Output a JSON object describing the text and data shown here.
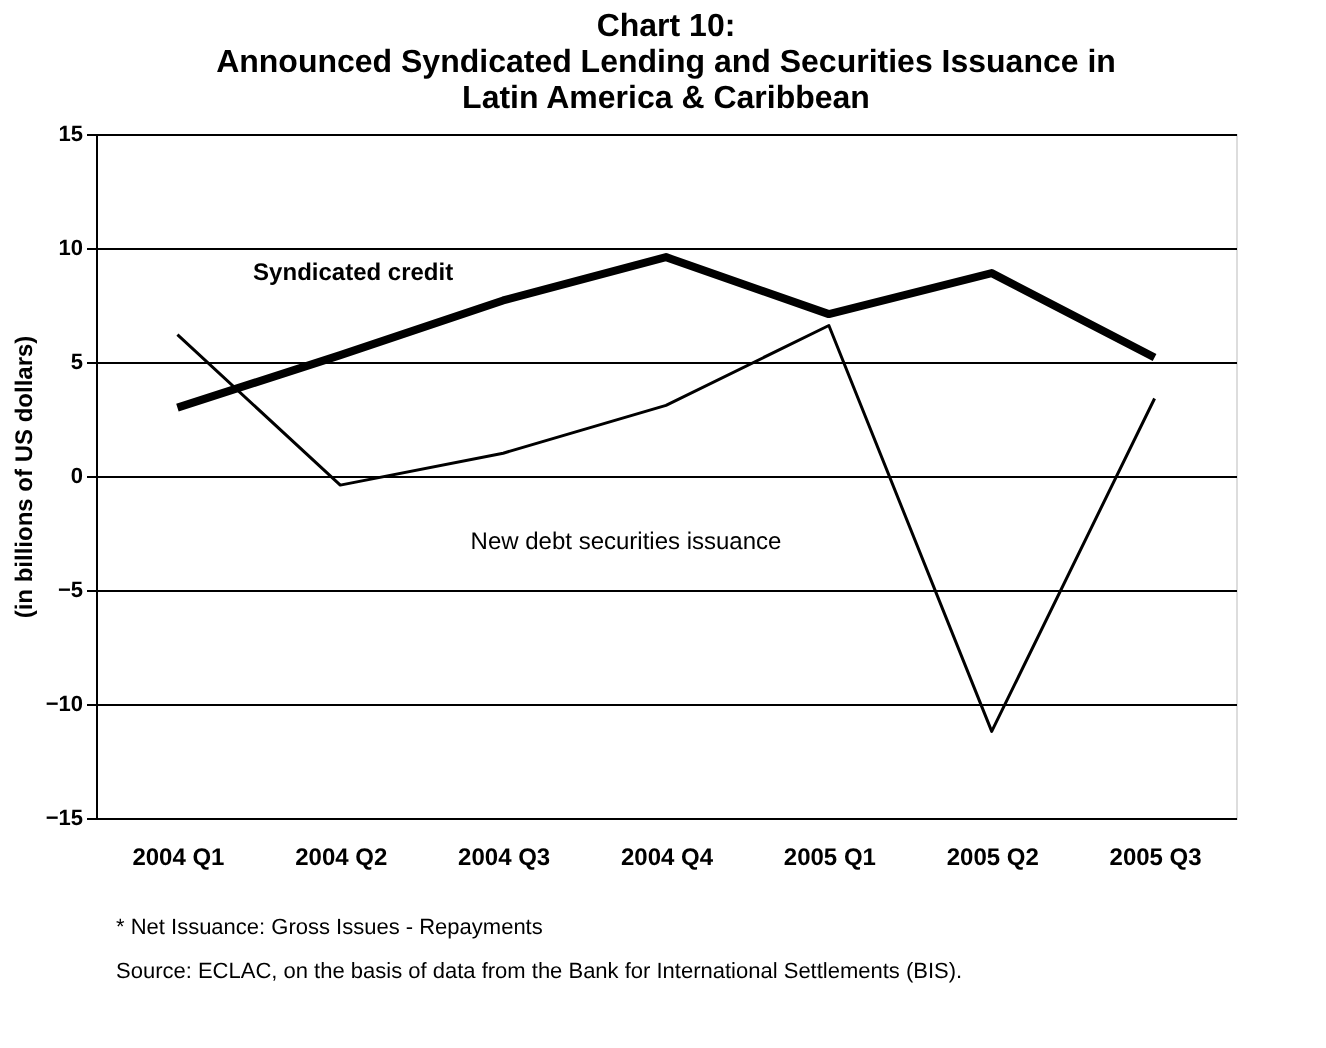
{
  "chart_data": {
    "type": "line",
    "title": [
      "Chart 10:",
      "Announced Syndicated Lending and Securities Issuance in",
      "Latin America & Caribbean"
    ],
    "ylabel": "(in billions of US dollars)",
    "categories": [
      "2004 Q1",
      "2004 Q2",
      "2004 Q3",
      "2004 Q4",
      "2005 Q1",
      "2005 Q2",
      "2005 Q3"
    ],
    "series": [
      {
        "name": "Syndicated credit",
        "color": "#000000",
        "values": [
          3.0,
          5.3,
          7.7,
          9.6,
          7.1,
          8.9,
          5.2
        ]
      },
      {
        "name": "New debt securities issuance",
        "color": "#000000",
        "values": [
          6.2,
          -0.4,
          1.0,
          3.1,
          6.6,
          -11.2,
          3.4
        ]
      }
    ],
    "ylim": [
      -15,
      15
    ],
    "yticks": [
      -15,
      -10,
      -5,
      0,
      5,
      10,
      15
    ],
    "grid": "y",
    "legend": false,
    "marker": "none",
    "line_style": "solid",
    "annotations": [
      "* Net Issuance: Gross Issues - Repayments",
      "Source: ECLAC, on the basis of data from the Bank for International Settlements (BIS)."
    ]
  }
}
